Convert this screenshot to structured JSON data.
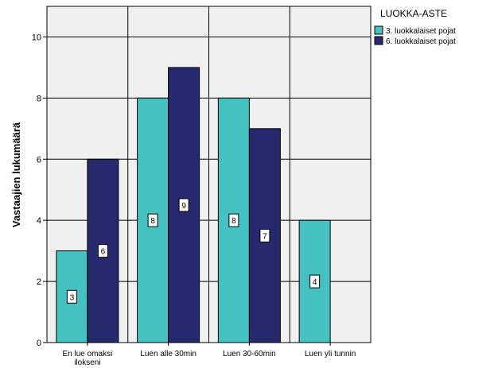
{
  "chart_data": {
    "type": "bar",
    "title": "",
    "xlabel": "",
    "ylabel": "Vastaajien lukumäärä",
    "ylim": [
      0,
      11
    ],
    "yticks": [
      0,
      2,
      4,
      6,
      8,
      10
    ],
    "grid": true,
    "legend_position": "top-right",
    "legend_title": "LUOKKA-ASTE",
    "categories": [
      "En lue omaksi ilokseni",
      "Luen alle 30min",
      "Luen 30-60min",
      "Luen yli tunnin"
    ],
    "series": [
      {
        "name": "3. luokkalaiset pojat",
        "color": "#45C1C1",
        "values": [
          3,
          8,
          8,
          4
        ]
      },
      {
        "name": "6. luokkalaiset pojat",
        "color": "#27296E",
        "values": [
          6,
          9,
          7,
          null
        ]
      }
    ],
    "plot_background": "#F0F0F0"
  }
}
